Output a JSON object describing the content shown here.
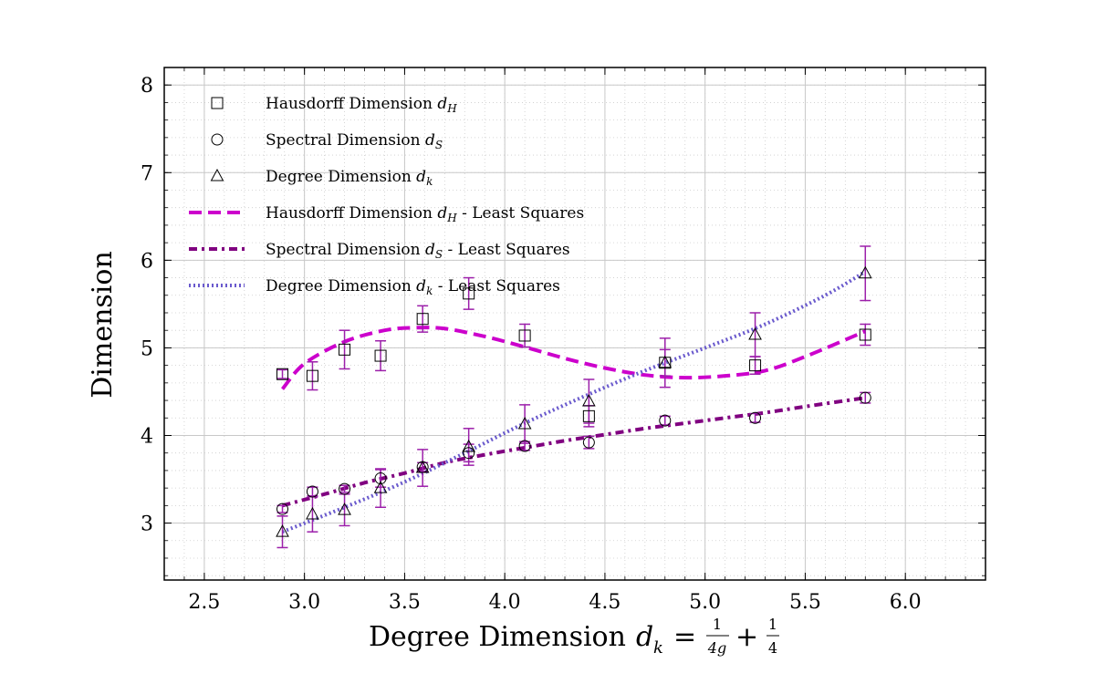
{
  "chart_data": {
    "type": "scatter",
    "xlabel": "Degree Dimension",
    "xlabel_math": "d",
    "xlabel_math_sub": "k",
    "xlabel_eq": "=",
    "xlabel_frac1_num": "1",
    "xlabel_frac1_den": "4g",
    "xlabel_plus": "+",
    "xlabel_frac2_num": "1",
    "xlabel_frac2_den": "4",
    "ylabel": "Dimension",
    "xlim": [
      2.3,
      6.4
    ],
    "ylim": [
      2.35,
      8.2
    ],
    "x_ticks": [
      2.5,
      3.0,
      3.5,
      4.0,
      4.5,
      5.0,
      5.5,
      6.0
    ],
    "x_tick_labels": [
      "2.5",
      "3.0",
      "3.5",
      "4.0",
      "4.5",
      "5.0",
      "5.5",
      "6.0"
    ],
    "y_ticks": [
      3,
      4,
      5,
      6,
      7,
      8
    ],
    "y_tick_labels": [
      "3",
      "4",
      "5",
      "6",
      "7",
      "8"
    ],
    "grid": true,
    "legend_position": "top-left",
    "series": [
      {
        "name": "Hausdorff Dimension",
        "math": "d",
        "sub": "H",
        "marker": "square",
        "x": [
          2.89,
          3.04,
          3.2,
          3.38,
          3.59,
          3.82,
          4.1,
          4.42,
          4.8,
          5.25,
          5.8
        ],
        "y": [
          4.7,
          4.68,
          4.98,
          4.91,
          5.33,
          5.62,
          5.14,
          4.22,
          4.83,
          4.8,
          5.15
        ],
        "err": [
          0.05,
          0.16,
          0.22,
          0.17,
          0.15,
          0.18,
          0.13,
          0.12,
          0.28,
          0.1,
          0.12
        ],
        "color": "#000000",
        "error_color": "#9c1faa"
      },
      {
        "name": "Spectral Dimension",
        "math": "d",
        "sub": "S",
        "marker": "circle",
        "x": [
          2.89,
          3.04,
          3.2,
          3.38,
          3.59,
          3.82,
          4.1,
          4.42,
          4.8,
          5.25,
          5.8
        ],
        "y": [
          3.16,
          3.36,
          3.39,
          3.51,
          3.64,
          3.8,
          3.88,
          3.92,
          4.17,
          4.2,
          4.43
        ],
        "err": [
          0.04,
          0.05,
          0.04,
          0.1,
          0.05,
          0.1,
          0.05,
          0.07,
          0.05,
          0.05,
          0.06
        ],
        "color": "#000000",
        "error_color": "#9c1faa"
      },
      {
        "name": "Degree Dimension",
        "math": "d",
        "sub": "k",
        "marker": "triangle",
        "x": [
          2.89,
          3.04,
          3.2,
          3.38,
          3.59,
          3.82,
          4.1,
          4.42,
          4.8,
          5.25,
          5.8
        ],
        "y": [
          2.9,
          3.1,
          3.15,
          3.4,
          3.63,
          3.87,
          4.13,
          4.39,
          4.83,
          5.15,
          5.85
        ],
        "err": [
          0.18,
          0.2,
          0.18,
          0.22,
          0.21,
          0.21,
          0.22,
          0.25,
          0.15,
          0.25,
          0.31
        ],
        "color": "#000000",
        "error_color": "#9c1faa"
      }
    ],
    "fits": [
      {
        "name": "Hausdorff Dimension",
        "math": "d",
        "sub": "H",
        "suffix": "- Least Squares",
        "style": "dashed",
        "color": "#cc00cc",
        "x": [
          2.89,
          3.0,
          3.2,
          3.4,
          3.55,
          3.7,
          3.9,
          4.1,
          4.3,
          4.5,
          4.7,
          4.9,
          5.1,
          5.3,
          5.5,
          5.8
        ],
        "y": [
          4.53,
          4.82,
          5.07,
          5.2,
          5.23,
          5.22,
          5.13,
          5.01,
          4.88,
          4.77,
          4.69,
          4.66,
          4.68,
          4.74,
          4.9,
          5.19
        ]
      },
      {
        "name": "Spectral Dimension",
        "math": "d",
        "sub": "S",
        "suffix": "- Least Squares",
        "style": "dashdot",
        "color": "#800080",
        "x": [
          2.89,
          3.1,
          3.3,
          3.5,
          3.7,
          3.9,
          4.1,
          4.3,
          4.5,
          4.7,
          4.9,
          5.1,
          5.3,
          5.5,
          5.8
        ],
        "y": [
          3.2,
          3.33,
          3.46,
          3.57,
          3.69,
          3.78,
          3.86,
          3.94,
          4.01,
          4.08,
          4.14,
          4.2,
          4.26,
          4.33,
          4.43
        ]
      },
      {
        "name": "Degree Dimension",
        "math": "d",
        "sub": "k",
        "suffix": "- Least Squares",
        "style": "dotted",
        "color": "#6a5acd",
        "x": [
          2.89,
          3.2,
          3.5,
          3.8,
          4.1,
          4.4,
          4.7,
          5.0,
          5.3,
          5.6,
          5.8
        ],
        "y": [
          2.9,
          3.18,
          3.47,
          3.8,
          4.14,
          4.45,
          4.74,
          5.0,
          5.27,
          5.6,
          5.87
        ]
      }
    ]
  }
}
